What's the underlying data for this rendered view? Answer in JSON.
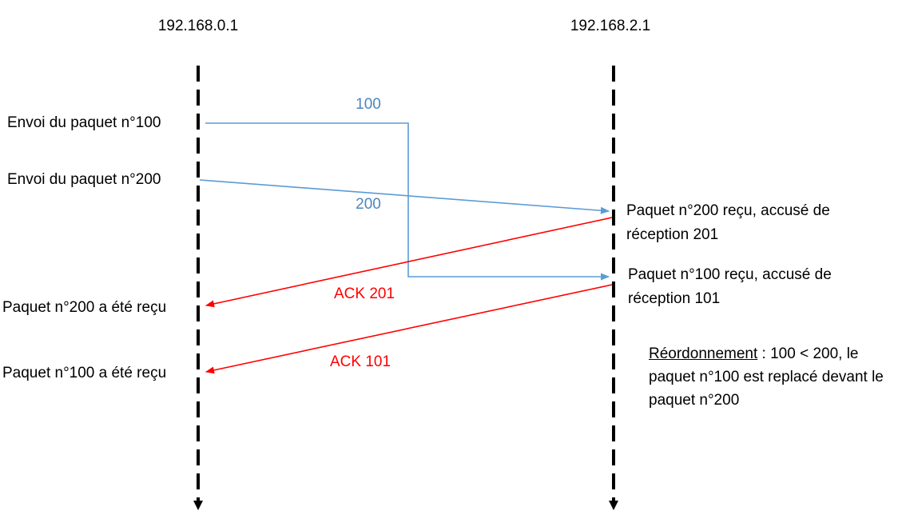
{
  "hosts": {
    "left": "192.168.0.1",
    "right": "192.168.2.1"
  },
  "events_left": {
    "send_100": "Envoi du paquet n°100",
    "send_200": "Envoi du paquet n°200",
    "ack_200_received": "Paquet n°200 a été reçu",
    "ack_100_received": "Paquet n°100 a été reçu"
  },
  "events_right": {
    "recv_200_line1": "Paquet n°200 reçu, accusé de",
    "recv_200_line2": "réception 201",
    "recv_100_line1": "Paquet n°100 reçu, accusé de",
    "recv_100_line2": "réception 101"
  },
  "arrow_labels": {
    "packet_100": "100",
    "packet_200": "200",
    "ack_201": "ACK 201",
    "ack_101": "ACK 101"
  },
  "note": {
    "term": "Réordonnement",
    "rest": " : 100 < 200, le paquet n°100 est replacé devant le paquet n°200"
  },
  "colors": {
    "packet": "#5b9bd5",
    "packet_label": "#4a86c0",
    "ack": "#ff0000",
    "timeline": "#000000"
  }
}
